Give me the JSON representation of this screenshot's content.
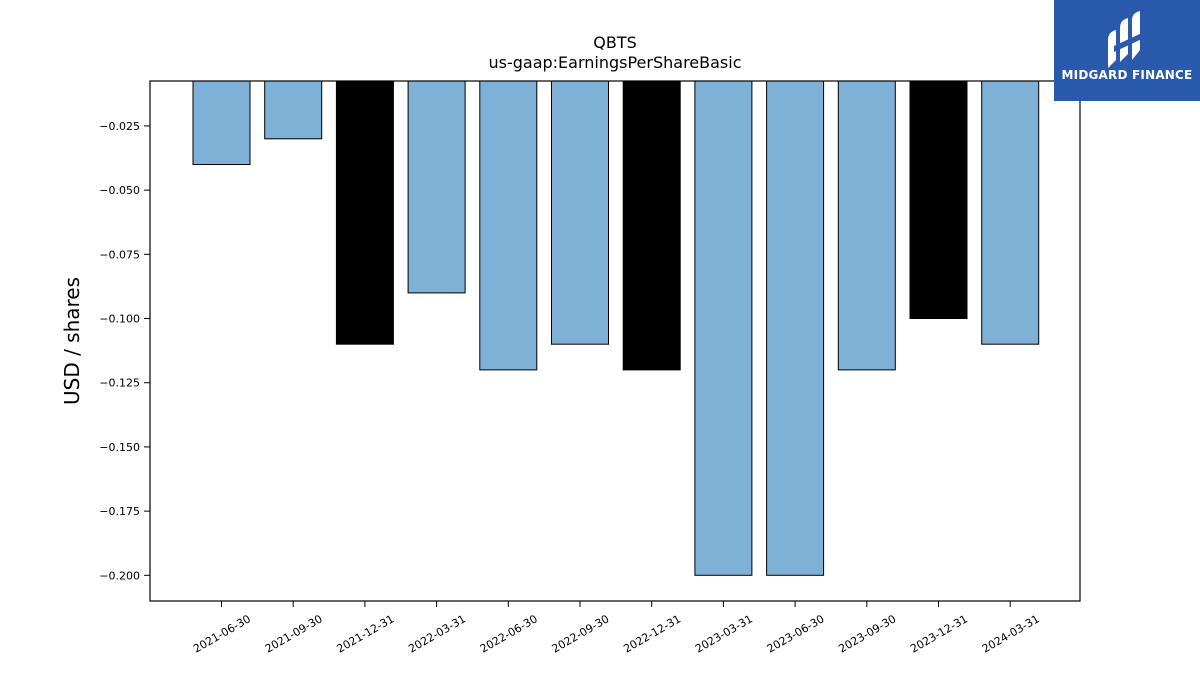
{
  "chart_data": {
    "type": "bar",
    "title": "QBTS",
    "subtitle": "us-gaap:EarningsPerShareBasic",
    "xlabel": "",
    "ylabel": "USD / shares",
    "categories": [
      "2021-06-30",
      "2021-09-30",
      "2021-12-31",
      "2022-03-31",
      "2022-06-30",
      "2022-09-30",
      "2022-12-31",
      "2023-03-31",
      "2023-06-30",
      "2023-09-30",
      "2023-12-31",
      "2024-03-31"
    ],
    "values": [
      -0.04,
      -0.03,
      -0.11,
      -0.09,
      -0.12,
      -0.11,
      -0.12,
      -0.2,
      -0.2,
      -0.12,
      -0.1,
      -0.11
    ],
    "bar_colors": [
      "#7fb0d5",
      "#7fb0d5",
      "#000000",
      "#7fb0d5",
      "#7fb0d5",
      "#7fb0d5",
      "#000000",
      "#7fb0d5",
      "#7fb0d5",
      "#7fb0d5",
      "#000000",
      "#7fb0d5"
    ],
    "ylim": [
      -0.21,
      -0.0075
    ],
    "yticks": [
      -0.025,
      -0.05,
      -0.075,
      -0.1,
      -0.125,
      -0.15,
      -0.175,
      -0.2
    ],
    "ytick_labels": [
      "−0.025",
      "−0.050",
      "−0.075",
      "−0.100",
      "−0.125",
      "−0.150",
      "−0.175",
      "−0.200"
    ],
    "grid": false
  },
  "logo": {
    "text": "MIDGARD FINANCE",
    "background": "#2a5aab"
  }
}
